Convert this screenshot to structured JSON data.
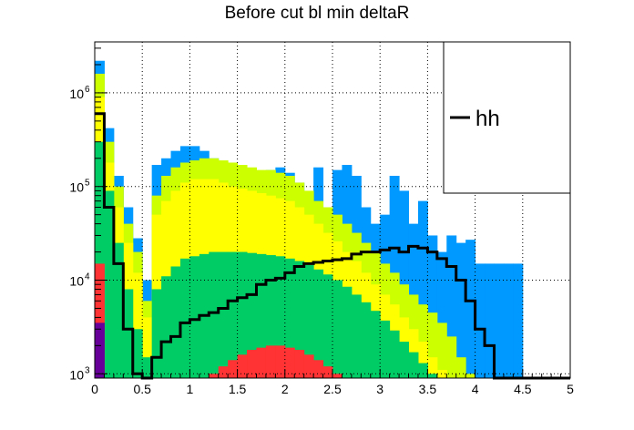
{
  "chart_data": {
    "type": "histogram",
    "title": "Before cut bl min deltaR",
    "xlabel": "",
    "ylabel": "",
    "xlim": [
      0,
      5
    ],
    "ylim": [
      900,
      3500000
    ],
    "log_y": true,
    "grid": true,
    "legend_position": "top-right",
    "x_ticks": [
      "0",
      "0.5",
      "1",
      "1.5",
      "2",
      "2.5",
      "3",
      "3.5",
      "4",
      "4.5",
      "5"
    ],
    "y_ticks": [
      {
        "value": 1000,
        "base": "10",
        "exp": "3"
      },
      {
        "value": 10000,
        "base": "10",
        "exp": "4"
      },
      {
        "value": 100000,
        "base": "10",
        "exp": "5"
      },
      {
        "value": 1000000,
        "base": "10",
        "exp": "6"
      }
    ],
    "bin_width": 0.1,
    "stacked_cumulative": [
      {
        "color": "#0099ff",
        "values": [
          2200000,
          420000,
          130000,
          60000,
          28000,
          10000,
          170000,
          200000,
          240000,
          270000,
          270000,
          240000,
          200000,
          170000,
          150000,
          140000,
          140000,
          130000,
          150000,
          160000,
          140000,
          110000,
          80000,
          160000,
          60000,
          150000,
          170000,
          130000,
          60000,
          40000,
          50000,
          130000,
          90000,
          40000,
          70000,
          30000,
          20000,
          30000,
          25000,
          27000,
          15000,
          15000,
          15000,
          15000,
          15000,
          0,
          0,
          0,
          0,
          0
        ]
      },
      {
        "color": "#ccff00",
        "values": [
          1600000,
          300000,
          100000,
          40000,
          20000,
          6000,
          80000,
          130000,
          160000,
          180000,
          190000,
          200000,
          200000,
          190000,
          180000,
          170000,
          160000,
          150000,
          150000,
          140000,
          130000,
          110000,
          90000,
          70000,
          60000,
          50000,
          40000,
          32000,
          25000,
          20000,
          15000,
          12000,
          9000,
          7000,
          5500,
          4500,
          3500,
          2500,
          1500,
          1000,
          900,
          0,
          0,
          0,
          0,
          0,
          0,
          0,
          0,
          0
        ]
      },
      {
        "color": "#ffff00",
        "values": [
          900000,
          180000,
          60000,
          25000,
          12000,
          4000,
          50000,
          70000,
          90000,
          110000,
          120000,
          120000,
          120000,
          110000,
          100000,
          95000,
          90000,
          85000,
          80000,
          75000,
          70000,
          60000,
          50000,
          40000,
          32000,
          26000,
          20000,
          16000,
          12000,
          9000,
          7000,
          5500,
          4000,
          3000,
          2200,
          1500,
          1100,
          900,
          0,
          0,
          0,
          0,
          0,
          0,
          0,
          0,
          0,
          0,
          0,
          0
        ]
      },
      {
        "color": "#00cc66",
        "values": [
          300000,
          90000,
          25000,
          8000,
          3000,
          1500,
          8000,
          11000,
          14000,
          17000,
          18000,
          19000,
          20000,
          20000,
          20000,
          20000,
          19500,
          19000,
          18500,
          18000,
          17000,
          16000,
          14500,
          13000,
          11500,
          10000,
          8500,
          7000,
          5800,
          4700,
          3700,
          2900,
          2200,
          1700,
          1300,
          1000,
          900,
          0,
          0,
          0,
          0,
          0,
          0,
          0,
          0,
          0,
          0,
          0,
          0,
          0
        ]
      },
      {
        "color": "#ff3333",
        "values": [
          15000,
          0,
          0,
          0,
          0,
          0,
          0,
          0,
          0,
          0,
          0,
          0,
          1000,
          1200,
          1400,
          1600,
          1800,
          1900,
          2000,
          2000,
          1900,
          1800,
          1600,
          1400,
          1200,
          1000,
          0,
          0,
          0,
          0,
          0,
          0,
          0,
          0,
          0,
          0,
          0,
          0,
          0,
          0,
          0,
          0,
          0,
          0,
          0,
          0,
          0,
          0,
          0,
          0
        ]
      },
      {
        "color": "#660099",
        "values": [
          3500,
          0,
          0,
          0,
          0,
          0,
          0,
          0,
          0,
          0,
          0,
          0,
          0,
          0,
          0,
          0,
          0,
          0,
          0,
          0,
          0,
          0,
          0,
          0,
          0,
          0,
          0,
          0,
          0,
          0,
          0,
          0,
          0,
          0,
          0,
          0,
          0,
          0,
          0,
          0,
          0,
          0,
          0,
          0,
          0,
          0,
          0,
          0,
          0,
          0
        ]
      }
    ],
    "series": [
      {
        "name": "hh",
        "color": "#000000",
        "values": [
          600000,
          60000,
          15000,
          3000,
          1000,
          0,
          1500,
          2200,
          2500,
          3500,
          3800,
          4200,
          4500,
          5000,
          6000,
          6500,
          7000,
          9000,
          10000,
          10500,
          12000,
          14000,
          15000,
          15500,
          16000,
          16500,
          17000,
          19000,
          20000,
          20000,
          21000,
          22000,
          20000,
          23000,
          22000,
          20000,
          17000,
          14000,
          10000,
          6000,
          3000,
          2000,
          900,
          0,
          0,
          0,
          0,
          0,
          0,
          0
        ]
      }
    ]
  }
}
